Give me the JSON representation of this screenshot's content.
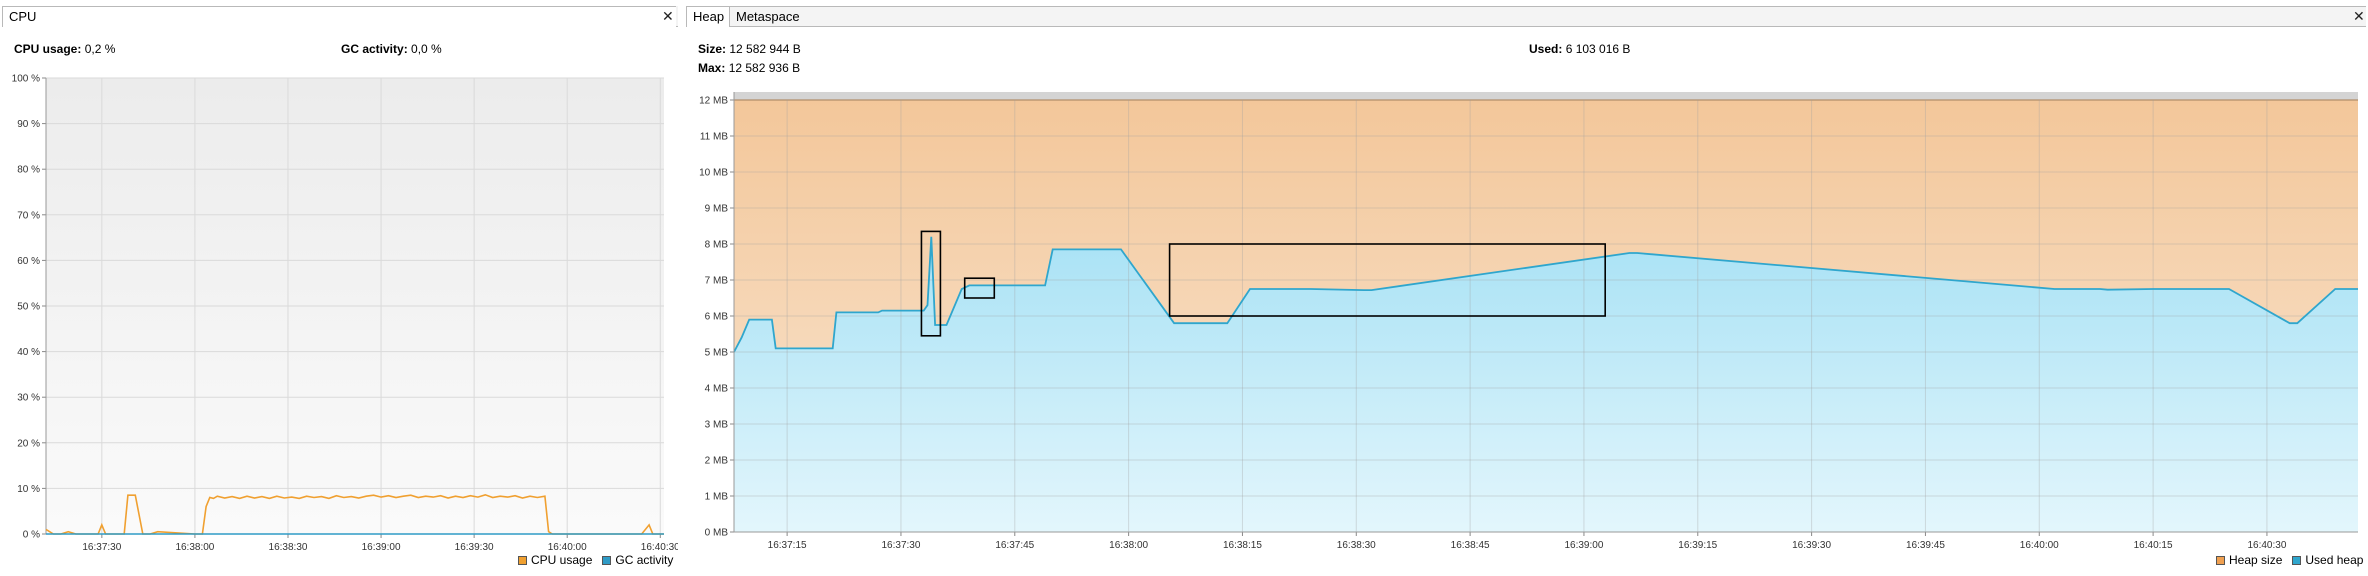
{
  "cpu": {
    "tab": "CPU",
    "close": "✕",
    "cpu_usage_label": "CPU usage:",
    "cpu_usage_value": "0,2 %",
    "gc_label": "GC activity:",
    "gc_value": "0,0 %",
    "legend": [
      {
        "label": "CPU usage",
        "color": "#f0a030"
      },
      {
        "label": "GC activity",
        "color": "#2f9bc6"
      }
    ]
  },
  "heap": {
    "tabs": [
      "Heap",
      "Metaspace"
    ],
    "close": "✕",
    "size_label": "Size:",
    "size_value": "12 582 944 B",
    "max_label": "Max:",
    "max_value": "12 582 936 B",
    "used_label": "Used:",
    "used_value": "6 103 016 B",
    "legend": [
      {
        "label": "Heap size",
        "color": "#f0a050"
      },
      {
        "label": "Used heap",
        "color": "#2fa6cd"
      }
    ]
  },
  "chart_data": [
    {
      "type": "line",
      "name": "cpu",
      "ylim": [
        0,
        100
      ],
      "yticks": [
        "0 %",
        "10 %",
        "20 %",
        "30 %",
        "40 %",
        "50 %",
        "60 %",
        "70 %",
        "80 %",
        "90 %",
        "100 %"
      ],
      "xticks": [
        "16:37:30",
        "16:38:00",
        "16:38:30",
        "16:39:00",
        "16:39:30",
        "16:40:00",
        "16:40:30"
      ],
      "series": [
        {
          "name": "CPU usage",
          "color": "#f0a030",
          "x": [
            0,
            2,
            4,
            6,
            8,
            10,
            14,
            15,
            16,
            17,
            18,
            19,
            20,
            21,
            22,
            24,
            26,
            28,
            30,
            40,
            42,
            43,
            44,
            45,
            46,
            48,
            50,
            52,
            54,
            56,
            58,
            60,
            62,
            64,
            66,
            68,
            70,
            72,
            74,
            76,
            78,
            80,
            82,
            84,
            86,
            88,
            90,
            92,
            94,
            96,
            98,
            100,
            102,
            104,
            106,
            108,
            110,
            112,
            114,
            116,
            118,
            120,
            122,
            124,
            126,
            128,
            130,
            132,
            134,
            135,
            136,
            138,
            140,
            150,
            160,
            162,
            163,
            164,
            166
          ],
          "y": [
            1,
            0,
            0,
            0.5,
            0,
            0,
            0,
            2,
            0,
            0,
            0,
            0,
            0,
            0,
            8.5,
            8.5,
            0,
            0,
            0.5,
            0,
            0,
            6,
            8,
            7.8,
            8.3,
            7.9,
            8.2,
            7.8,
            8.3,
            7.9,
            8.2,
            7.8,
            8.3,
            7.9,
            8.1,
            7.8,
            8.3,
            8.0,
            8.2,
            7.8,
            8.4,
            8.0,
            8.2,
            7.9,
            8.3,
            8.5,
            8.1,
            8.4,
            8.0,
            8.3,
            8.5,
            8.0,
            8.3,
            8.1,
            8.4,
            7.9,
            8.3,
            8.0,
            8.4,
            8.1,
            8.6,
            8.0,
            8.3,
            8.1,
            8.4,
            7.9,
            8.3,
            8.0,
            8.3,
            0.5,
            0,
            0,
            0,
            0,
            0,
            2,
            0,
            0,
            0
          ]
        },
        {
          "name": "GC activity",
          "color": "#2f9bc6",
          "x": [
            0,
            166
          ],
          "y": [
            0,
            0
          ]
        }
      ]
    },
    {
      "type": "area",
      "name": "heap",
      "ylim": [
        0,
        12
      ],
      "yticks": [
        "0 MB",
        "1 MB",
        "2 MB",
        "3 MB",
        "4 MB",
        "5 MB",
        "6 MB",
        "7 MB",
        "8 MB",
        "9 MB",
        "10 MB",
        "11 MB",
        "12 MB"
      ],
      "xticks": [
        "16:37:15",
        "16:37:30",
        "16:37:45",
        "16:38:00",
        "16:38:15",
        "16:38:30",
        "16:38:45",
        "16:39:00",
        "16:39:15",
        "16:39:30",
        "16:39:45",
        "16:40:00",
        "16:40:15",
        "16:40:30"
      ],
      "series": [
        {
          "name": "Heap size",
          "color": "#f0a050",
          "x": [
            0,
            214
          ],
          "y": [
            12,
            12
          ]
        },
        {
          "name": "Used heap",
          "color": "#2fa6cd",
          "x": [
            0,
            1,
            2,
            5,
            5.5,
            11,
            13,
            13.5,
            19,
            19.5,
            25,
            25.5,
            26,
            26.5,
            27,
            28,
            30,
            31,
            35,
            41,
            42,
            49,
            51,
            58,
            59,
            65,
            68,
            75,
            76,
            83,
            84,
            118,
            119,
            174,
            175,
            180,
            181,
            187,
            188,
            196,
            197,
            205,
            206,
            211,
            213,
            214
          ],
          "y": [
            5.0,
            5.4,
            5.9,
            5.9,
            5.1,
            5.1,
            5.1,
            6.1,
            6.1,
            6.15,
            6.15,
            6.3,
            8.2,
            5.75,
            5.75,
            5.75,
            6.75,
            6.85,
            6.85,
            6.85,
            7.85,
            7.85,
            7.85,
            5.8,
            5.8,
            5.8,
            6.75,
            6.75,
            6.75,
            6.72,
            6.72,
            7.75,
            7.75,
            6.75,
            6.75,
            6.75,
            6.73,
            6.75,
            6.75,
            6.75,
            6.75,
            5.8,
            5.8,
            6.75,
            6.75,
            6.75
          ]
        }
      ]
    }
  ]
}
